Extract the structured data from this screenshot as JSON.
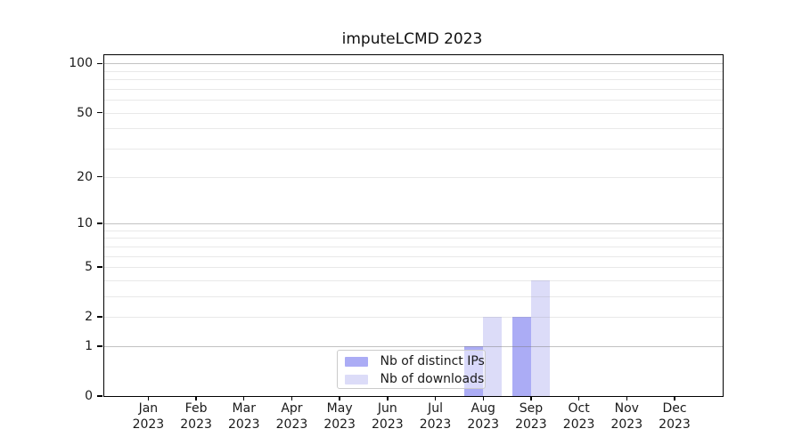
{
  "title": "imputeLCMD 2023",
  "chart_data": {
    "type": "bar",
    "title": "imputeLCMD 2023",
    "categories": [
      "Jan",
      "Feb",
      "Mar",
      "Apr",
      "May",
      "Jun",
      "Jul",
      "Aug",
      "Sep",
      "Oct",
      "Nov",
      "Dec"
    ],
    "category_year": "2023",
    "series": [
      {
        "name": "Nb of distinct IPs",
        "color": "#abacf5",
        "values": [
          0,
          0,
          0,
          0,
          0,
          0,
          0,
          1,
          2,
          0,
          0,
          0
        ]
      },
      {
        "name": "Nb of downloads",
        "color": "#dcdcf8",
        "values": [
          0,
          0,
          0,
          0,
          0,
          0,
          0,
          2,
          4,
          0,
          0,
          0
        ]
      }
    ],
    "xlabel": "",
    "ylabel": "",
    "y_axis": {
      "scale": "log1p",
      "tick_values": [
        0,
        1,
        2,
        5,
        10,
        20,
        50,
        100
      ],
      "tick_labels": [
        "0",
        "1",
        "2",
        "5",
        "10",
        "20",
        "50",
        "100"
      ],
      "ylim": [
        0,
        113
      ],
      "major_grid_values": [
        1,
        10,
        100
      ],
      "minor_grid_values": [
        2,
        3,
        4,
        5,
        6,
        7,
        8,
        9,
        20,
        30,
        40,
        50,
        60,
        70,
        80,
        90
      ],
      "grid": "on"
    },
    "legend_position": "lower center"
  },
  "colors": {
    "bar_distinct_ips": "#abacf5",
    "bar_downloads": "#dcdcf8",
    "axis_line": "#000000",
    "text": "#1a1a1a",
    "grid_major": "rgba(120,120,120,0.45)",
    "grid_minor": "rgba(135,135,135,0.18)",
    "legend_border": "#cbcbcb",
    "legend_background": "rgba(255,255,255,0.55)",
    "background": "#ffffff"
  }
}
